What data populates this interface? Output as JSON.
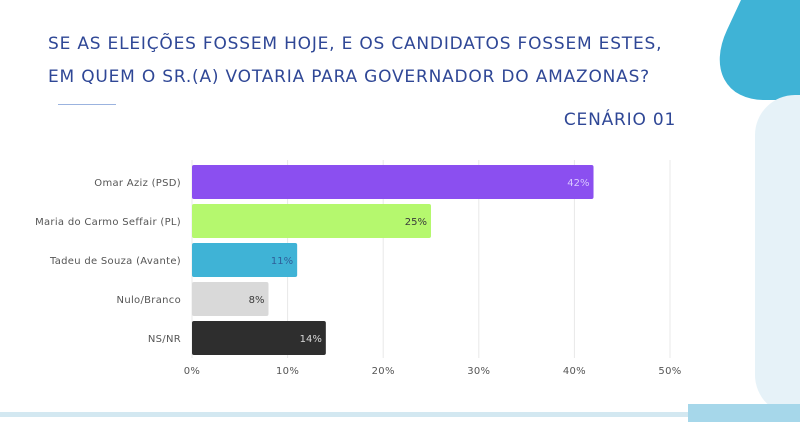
{
  "header": {
    "question": "SE AS ELEIÇÕES FOSSEM HOJE, E OS CANDIDATOS FOSSEM ESTES, EM QUEM O SR.(A) VOTARIA PARA GOVERNADOR DO AMAZONAS?",
    "scenario": "CENÁRIO 01"
  },
  "chart_data": {
    "type": "bar",
    "orientation": "horizontal",
    "categories": [
      "Omar Aziz (PSD)",
      "Maria do Carmo Seffair (PL)",
      "Tadeu de Souza (Avante)",
      "Nulo/Branco",
      "NS/NR"
    ],
    "values": [
      42,
      25,
      11,
      8,
      14
    ],
    "value_labels": [
      "42%",
      "25%",
      "11%",
      "8%",
      "14%"
    ],
    "bar_colors": [
      "#8b4ff0",
      "#b5f86e",
      "#3fb3d6",
      "#d9d9d9",
      "#2e2e2e"
    ],
    "value_label_colors": [
      "#d9c8ff",
      "#3a3a3a",
      "#2f5f9a",
      "#3a3a3a",
      "#d8d8d8"
    ],
    "x_ticks": [
      0,
      10,
      20,
      30,
      40,
      50
    ],
    "x_tick_labels": [
      "0%",
      "10%",
      "20%",
      "30%",
      "40%",
      "50%"
    ],
    "xlim": [
      0,
      50
    ],
    "grid": true,
    "legend": "none"
  },
  "colors": {
    "title": "#2f4796",
    "grid": "#e8e8e8",
    "tick_label": "#555555"
  }
}
